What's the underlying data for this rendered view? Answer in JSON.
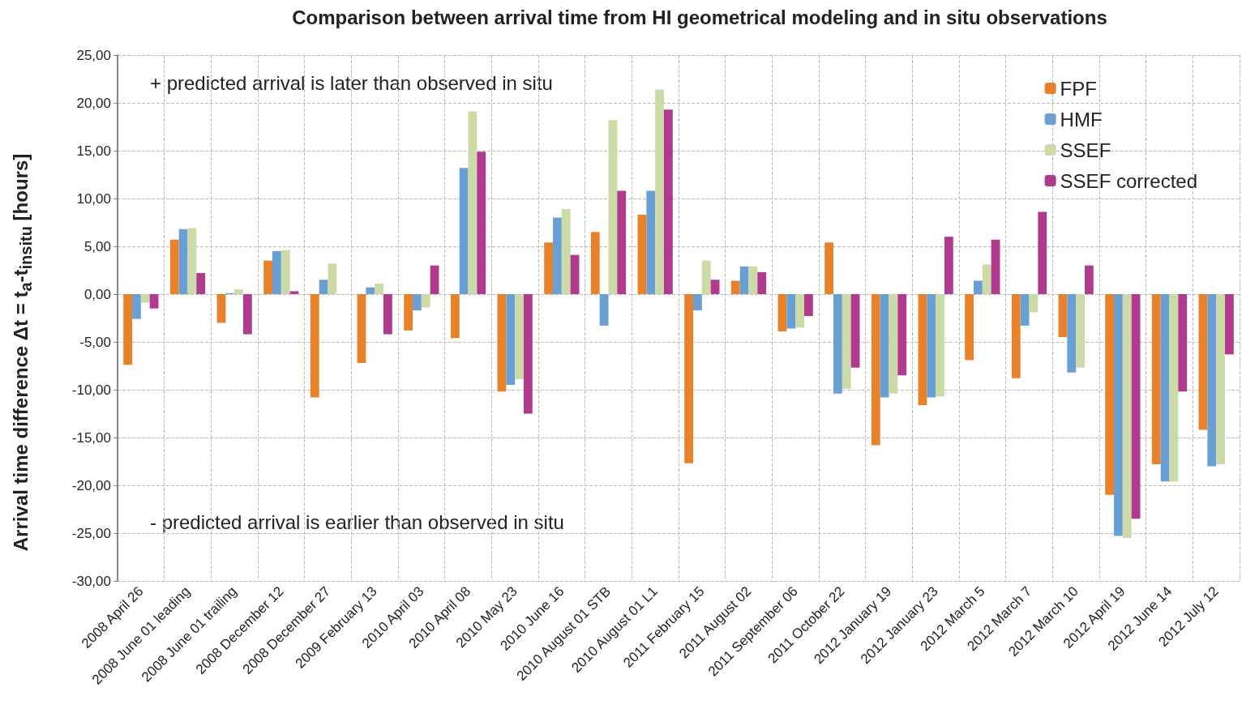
{
  "chart_data": {
    "type": "bar",
    "title": "Comparison between arrival time from HI geometrical modeling and in situ observations",
    "ylabel": "Arrival time difference  Δt = t$_{a}$-t$_{insitu}$  [hours]",
    "annotations": [
      "+ predicted arrival is later than observed in situ",
      "- predicted arrival is earlier than observed in situ"
    ],
    "categories": [
      "2008 April 26",
      "2008 June 01 leading",
      "2008 June 01 trailing",
      "2008 December 12",
      "2008 December 27",
      "2009 February 13",
      "2010 April 03",
      "2010 April 08",
      "2010 May 23",
      "2010 June 16",
      "2010 August 01 STB",
      "2010 August 01 L1",
      "2011 February 15",
      "2011 August 02",
      "2011 September 06",
      "2011 October 22",
      "2012 January 19",
      "2012 January 23",
      "2012 March 5",
      "2012 March 7",
      "2012 March 10",
      "2012 April 19",
      "2012 June 14",
      "2012 July 12"
    ],
    "series": [
      {
        "name": "FPF",
        "color": "#e8822a",
        "values": [
          -7.4,
          5.7,
          -3.0,
          3.5,
          -10.8,
          -7.2,
          -3.8,
          -4.6,
          -10.2,
          5.4,
          6.5,
          8.3,
          -17.7,
          1.4,
          -3.9,
          5.4,
          -15.8,
          -11.6,
          -6.9,
          -8.8,
          -4.5,
          -21.0,
          -17.8,
          -14.2
        ]
      },
      {
        "name": "HMF",
        "color": "#6a9fd4",
        "values": [
          -2.6,
          6.8,
          0.1,
          4.5,
          1.5,
          0.7,
          -1.7,
          13.2,
          -9.5,
          8.0,
          -3.3,
          10.8,
          -1.7,
          2.9,
          -3.6,
          -10.4,
          -10.8,
          -10.8,
          1.4,
          -3.3,
          -8.2,
          -25.3,
          -19.6,
          -18.0
        ]
      },
      {
        "name": "SSEF",
        "color": "#ccdaa8",
        "values": [
          -0.9,
          6.9,
          0.5,
          4.6,
          3.2,
          1.1,
          -1.4,
          19.1,
          -8.9,
          8.9,
          18.2,
          21.4,
          3.5,
          2.9,
          -3.5,
          -9.9,
          -10.4,
          -10.7,
          3.1,
          -1.9,
          -7.7,
          -25.5,
          -19.6,
          -17.8
        ]
      },
      {
        "name": "SSEF corrected",
        "color": "#b03a8e",
        "values": [
          -1.5,
          2.2,
          -4.2,
          0.3,
          null,
          -4.2,
          3.0,
          14.9,
          -12.5,
          4.1,
          10.8,
          19.3,
          1.5,
          2.3,
          -2.3,
          -7.7,
          -8.5,
          6.0,
          5.7,
          8.6,
          3.0,
          -23.5,
          -10.2,
          -6.3
        ]
      }
    ],
    "ylim": [
      -30,
      25
    ],
    "yticks": [
      {
        "value": -30,
        "label": "-30,00"
      },
      {
        "value": -25,
        "label": "-25,00"
      },
      {
        "value": -20,
        "label": "-20,00"
      },
      {
        "value": -15,
        "label": "-15,00"
      },
      {
        "value": -10,
        "label": "-10,00"
      },
      {
        "value": -5,
        "label": "-5,00"
      },
      {
        "value": 0,
        "label": "0,00"
      },
      {
        "value": 5,
        "label": "5,00"
      },
      {
        "value": 10,
        "label": "10,00"
      },
      {
        "value": 15,
        "label": "15,00"
      },
      {
        "value": 20,
        "label": "20,00"
      },
      {
        "value": 25,
        "label": "25,00"
      }
    ],
    "grid": true,
    "legend": "top right"
  }
}
